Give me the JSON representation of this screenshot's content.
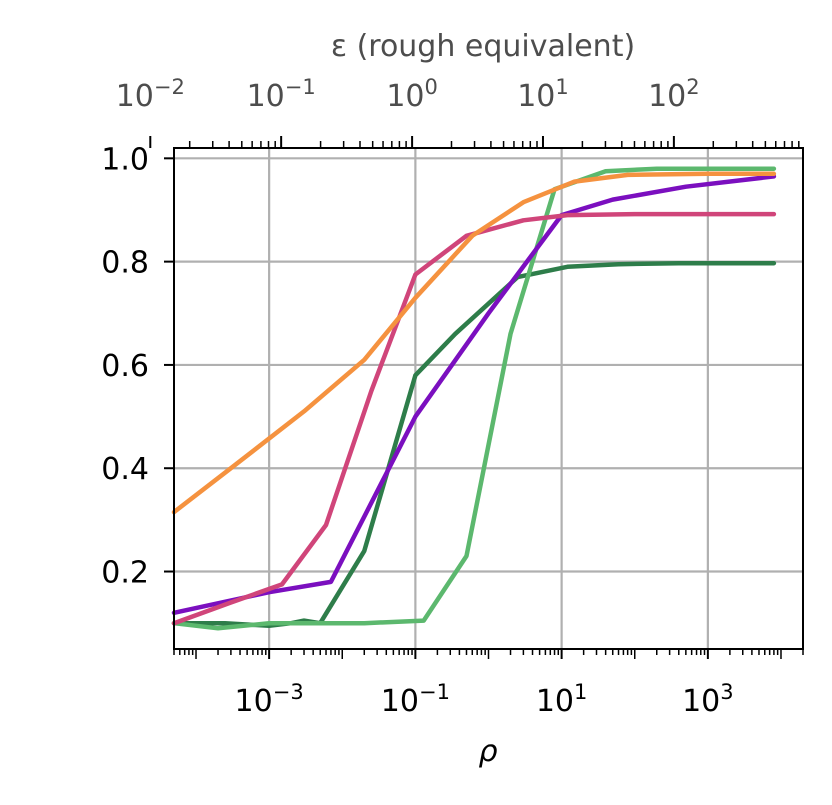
{
  "chart_data": {
    "type": "line",
    "xlabel": "ρ",
    "top_xlabel": "ε (rough equivalent)",
    "ylabel": "",
    "x_scale": "log",
    "xlim": [
      5e-05,
      20000
    ],
    "ylim": [
      0.05,
      1.02
    ],
    "grid": true,
    "x_ticks": [
      {
        "value": 0.001,
        "base": "10",
        "exp": "−3"
      },
      {
        "value": 0.1,
        "base": "10",
        "exp": "−1"
      },
      {
        "value": 10,
        "base": "10",
        "exp": "1"
      },
      {
        "value": 1000,
        "base": "10",
        "exp": "3"
      }
    ],
    "y_ticks": [
      {
        "value": 0.2,
        "label": "0.2"
      },
      {
        "value": 0.4,
        "label": "0.4"
      },
      {
        "value": 0.6,
        "label": "0.6"
      },
      {
        "value": 0.8,
        "label": "0.8"
      },
      {
        "value": 1.0,
        "label": "1.0"
      }
    ],
    "top_axis": {
      "scale": "log",
      "ticks": [
        {
          "rho": 2.37e-05,
          "base": "10",
          "exp": "−2"
        },
        {
          "rho": 0.00146,
          "base": "10",
          "exp": "−1"
        },
        {
          "rho": 0.0902,
          "base": "10",
          "exp": "0"
        },
        {
          "rho": 5.56,
          "base": "10",
          "exp": "1"
        },
        {
          "rho": 343,
          "base": "10",
          "exp": "2"
        }
      ]
    },
    "series": [
      {
        "color": "#2e7d4a",
        "points": [
          [
            5e-05,
            0.1
          ],
          [
            0.00025,
            0.1
          ],
          [
            0.001,
            0.095
          ],
          [
            0.002,
            0.1
          ],
          [
            0.003,
            0.105
          ],
          [
            0.005,
            0.1
          ],
          [
            0.02,
            0.24
          ],
          [
            0.1,
            0.58
          ],
          [
            0.35,
            0.66
          ],
          [
            2.5,
            0.77
          ],
          [
            12,
            0.79
          ],
          [
            60,
            0.795
          ],
          [
            400,
            0.797
          ],
          [
            8000,
            0.797
          ]
        ]
      },
      {
        "color": "#5cb86e",
        "points": [
          [
            5e-05,
            0.1
          ],
          [
            0.0002,
            0.09
          ],
          [
            0.001,
            0.1
          ],
          [
            0.02,
            0.1
          ],
          [
            0.13,
            0.105
          ],
          [
            0.5,
            0.23
          ],
          [
            2,
            0.66
          ],
          [
            8,
            0.94
          ],
          [
            40,
            0.975
          ],
          [
            200,
            0.98
          ],
          [
            8000,
            0.98
          ]
        ]
      },
      {
        "color": "#7b0fbf",
        "points": [
          [
            5e-05,
            0.12
          ],
          [
            0.001,
            0.16
          ],
          [
            0.007,
            0.18
          ],
          [
            0.1,
            0.5
          ],
          [
            1,
            0.7
          ],
          [
            10,
            0.89
          ],
          [
            50,
            0.92
          ],
          [
            500,
            0.945
          ],
          [
            8000,
            0.965
          ]
        ]
      },
      {
        "color": "#d0457a",
        "points": [
          [
            5e-05,
            0.1
          ],
          [
            0.0003,
            0.14
          ],
          [
            0.0015,
            0.175
          ],
          [
            0.006,
            0.29
          ],
          [
            0.025,
            0.55
          ],
          [
            0.1,
            0.775
          ],
          [
            0.5,
            0.85
          ],
          [
            3,
            0.88
          ],
          [
            12,
            0.89
          ],
          [
            100,
            0.892
          ],
          [
            8000,
            0.892
          ]
        ]
      },
      {
        "color": "#f5923f",
        "points": [
          [
            5e-05,
            0.315
          ],
          [
            0.0003,
            0.4
          ],
          [
            0.003,
            0.51
          ],
          [
            0.02,
            0.61
          ],
          [
            0.1,
            0.73
          ],
          [
            0.6,
            0.85
          ],
          [
            3,
            0.915
          ],
          [
            15,
            0.955
          ],
          [
            80,
            0.968
          ],
          [
            1000,
            0.97
          ],
          [
            8000,
            0.97
          ]
        ]
      }
    ]
  }
}
